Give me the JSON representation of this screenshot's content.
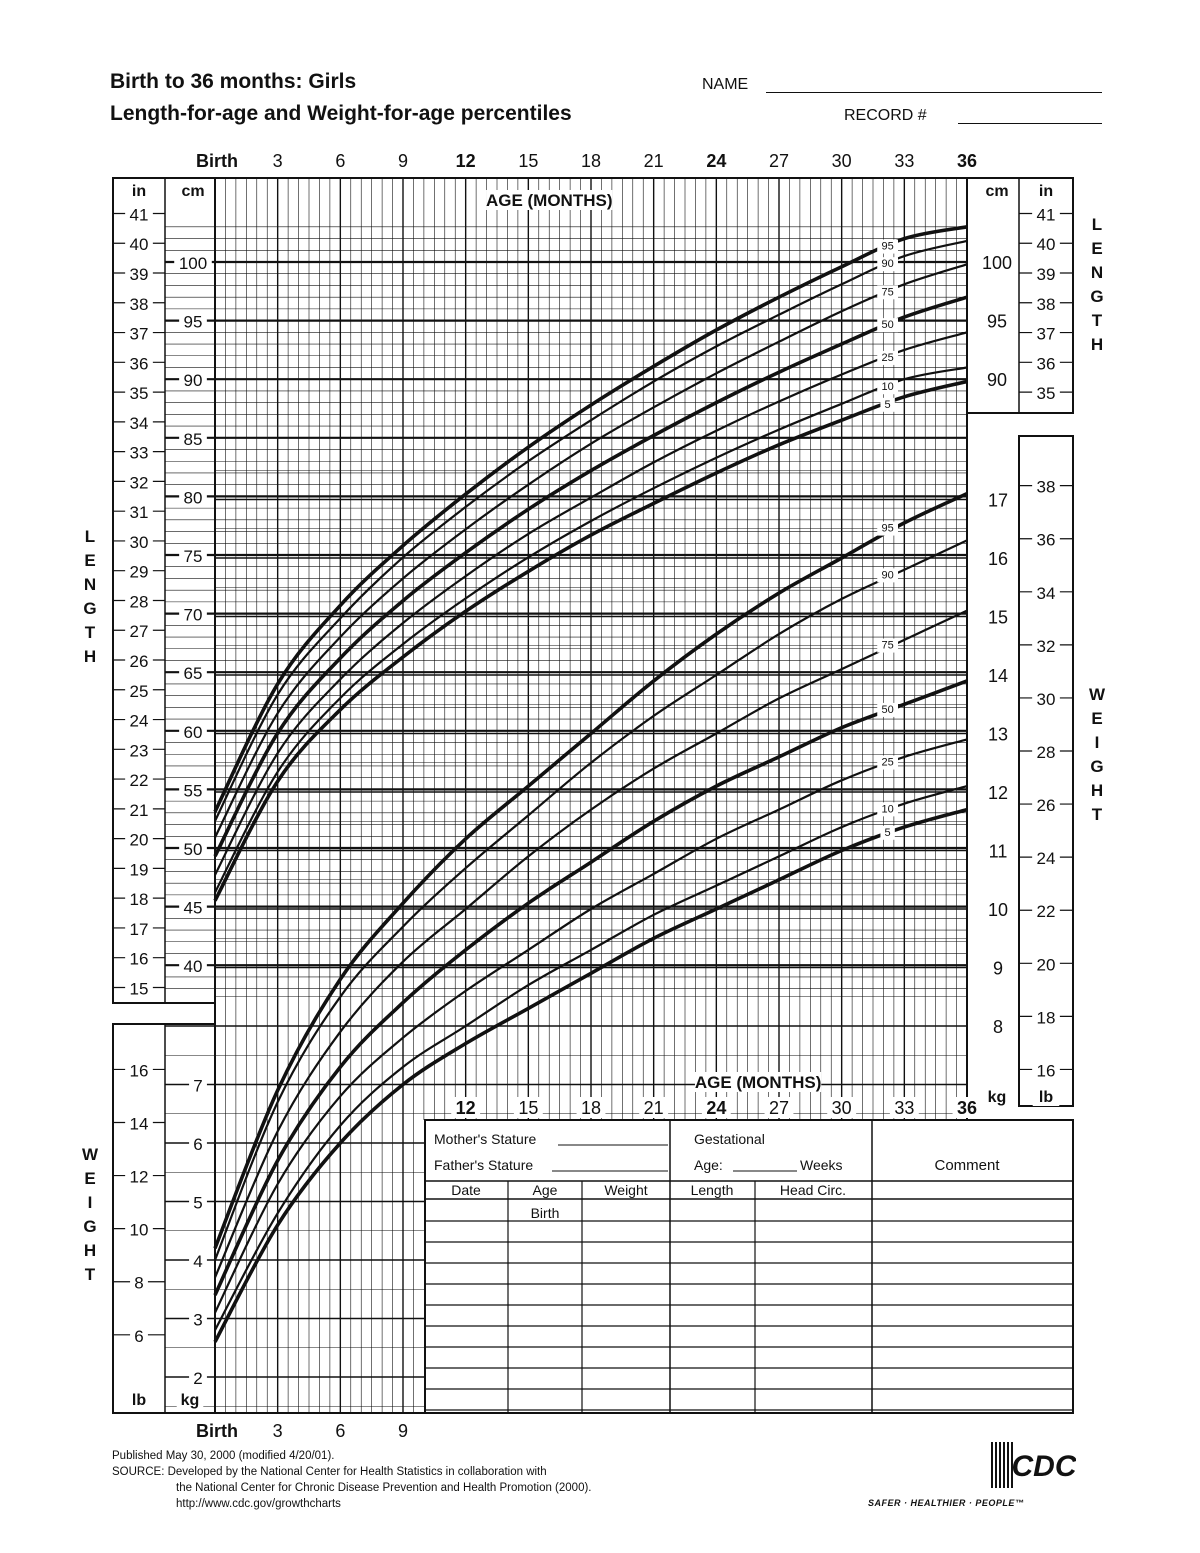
{
  "header": {
    "title_line1": "Birth to 36 months: Girls",
    "title_line2": "Length-for-age and Weight-for-age percentiles",
    "name_label": "NAME",
    "record_label": "RECORD #"
  },
  "labels": {
    "birth": "Birth",
    "age_months": "AGE (MONTHS)",
    "in": "in",
    "cm": "cm",
    "kg": "kg",
    "lb": "lb",
    "length_vertical": "LENGTH",
    "weight_vertical": "WEIGHT"
  },
  "form": {
    "mothers_stature": "Mother's Stature",
    "fathers_stature": "Father's Stature",
    "gestational": "Gestational",
    "age_label": "Age:",
    "weeks": "Weeks",
    "comment": "Comment",
    "columns": [
      "Date",
      "Age",
      "Weight",
      "Length",
      "Head  Circ."
    ],
    "first_row_age": "Birth"
  },
  "footer": {
    "line1": "Published May 30, 2000 (modified 4/20/01).",
    "line2": "SOURCE: Developed by the National Center for Health Statistics in collaboration with",
    "line3": "the National Center for Chronic Disease Prevention and Health Promotion (2000).",
    "line4": "http://www.cdc.gov/growthcharts",
    "logo": "CDC",
    "tagline": "SAFER · HEALTHIER · PEOPLE™"
  },
  "chart_data": [
    {
      "type": "line",
      "xlabel": "AGE (MONTHS)",
      "ylabel": "LENGTH",
      "x_ticks": [
        "Birth",
        "3",
        "6",
        "9",
        "12",
        "15",
        "18",
        "21",
        "24",
        "27",
        "30",
        "33",
        "36"
      ],
      "xlim": [
        0,
        36
      ],
      "ylim_cm": [
        38,
        103
      ],
      "cm_ticks": [
        40,
        45,
        50,
        55,
        60,
        65,
        70,
        75,
        80,
        85,
        90,
        95,
        100
      ],
      "in_ticks": [
        15,
        16,
        17,
        18,
        19,
        20,
        21,
        22,
        23,
        24,
        25,
        26,
        27,
        28,
        29,
        30,
        31,
        32,
        33,
        34,
        35,
        36,
        37,
        38,
        39,
        40,
        41
      ],
      "x": [
        0,
        3,
        6,
        9,
        12,
        15,
        18,
        21,
        24,
        27,
        30,
        33,
        36
      ],
      "series": [
        {
          "name": "5",
          "values": [
            45.5,
            55.7,
            61.8,
            66.3,
            70.2,
            73.6,
            76.7,
            79.4,
            82.0,
            84.4,
            86.5,
            88.5,
            89.8
          ]
        },
        {
          "name": "10",
          "values": [
            46.2,
            56.5,
            62.8,
            67.4,
            71.3,
            74.8,
            77.9,
            80.7,
            83.3,
            85.7,
            87.9,
            90.0,
            91.0
          ]
        },
        {
          "name": "25",
          "values": [
            47.7,
            58.1,
            64.4,
            69.2,
            73.2,
            76.8,
            79.9,
            82.9,
            85.6,
            88.1,
            90.4,
            92.5,
            94.0
          ]
        },
        {
          "name": "50",
          "values": [
            49.3,
            59.8,
            66.2,
            71.1,
            75.2,
            78.9,
            82.2,
            85.2,
            88.0,
            90.6,
            93.0,
            95.3,
            97.0
          ]
        },
        {
          "name": "75",
          "values": [
            50.9,
            61.5,
            68.0,
            73.0,
            77.2,
            81.0,
            84.5,
            87.6,
            90.5,
            93.2,
            95.8,
            98.1,
            99.8
          ]
        },
        {
          "name": "90",
          "values": [
            52.3,
            63.1,
            69.6,
            74.8,
            79.1,
            83.0,
            86.5,
            89.8,
            92.8,
            95.5,
            98.1,
            100.5,
            101.8
          ]
        },
        {
          "name": "95",
          "values": [
            53.1,
            64.0,
            70.7,
            75.8,
            80.2,
            84.2,
            87.8,
            91.1,
            94.2,
            97.0,
            99.6,
            102.0,
            103.0
          ]
        }
      ]
    },
    {
      "type": "line",
      "xlabel": "AGE (MONTHS)",
      "ylabel": "WEIGHT",
      "x_ticks": [
        "Birth",
        "3",
        "6",
        "9",
        "12",
        "15",
        "18",
        "21",
        "24",
        "27",
        "30",
        "33",
        "36"
      ],
      "xlim": [
        0,
        36
      ],
      "ylim_kg": [
        1.5,
        17.7
      ],
      "kg_ticks": [
        2,
        3,
        4,
        5,
        6,
        7,
        8,
        9,
        10,
        11,
        12,
        13,
        14,
        15,
        16,
        17
      ],
      "lb_ticks": [
        6,
        8,
        10,
        12,
        14,
        16,
        18,
        20,
        22,
        24,
        26,
        28,
        30,
        32,
        34,
        36,
        38
      ],
      "x": [
        0,
        3,
        6,
        9,
        12,
        15,
        18,
        21,
        24,
        27,
        30,
        33,
        36
      ],
      "series": [
        {
          "name": "5",
          "values": [
            2.6,
            4.6,
            6.0,
            7.0,
            7.7,
            8.3,
            8.9,
            9.5,
            10.0,
            10.5,
            11.0,
            11.4,
            11.7
          ]
        },
        {
          "name": "10",
          "values": [
            2.8,
            4.8,
            6.3,
            7.3,
            8.0,
            8.7,
            9.3,
            9.9,
            10.4,
            10.9,
            11.4,
            11.8,
            12.1
          ]
        },
        {
          "name": "25",
          "values": [
            3.1,
            5.3,
            6.8,
            7.8,
            8.6,
            9.3,
            10.0,
            10.6,
            11.2,
            11.7,
            12.2,
            12.6,
            12.9
          ]
        },
        {
          "name": "50",
          "values": [
            3.4,
            5.7,
            7.3,
            8.4,
            9.3,
            10.1,
            10.8,
            11.5,
            12.1,
            12.6,
            13.1,
            13.5,
            13.9
          ]
        },
        {
          "name": "75",
          "values": [
            3.7,
            6.2,
            7.9,
            9.1,
            10.0,
            10.9,
            11.7,
            12.4,
            13.0,
            13.6,
            14.1,
            14.6,
            15.1
          ]
        },
        {
          "name": "90",
          "values": [
            4.0,
            6.7,
            8.5,
            9.7,
            10.7,
            11.6,
            12.5,
            13.3,
            14.0,
            14.7,
            15.3,
            15.8,
            16.3
          ]
        },
        {
          "name": "95",
          "values": [
            4.2,
            6.9,
            8.8,
            10.1,
            11.2,
            12.1,
            13.0,
            13.9,
            14.7,
            15.4,
            16.0,
            16.6,
            17.1
          ]
        }
      ]
    }
  ]
}
